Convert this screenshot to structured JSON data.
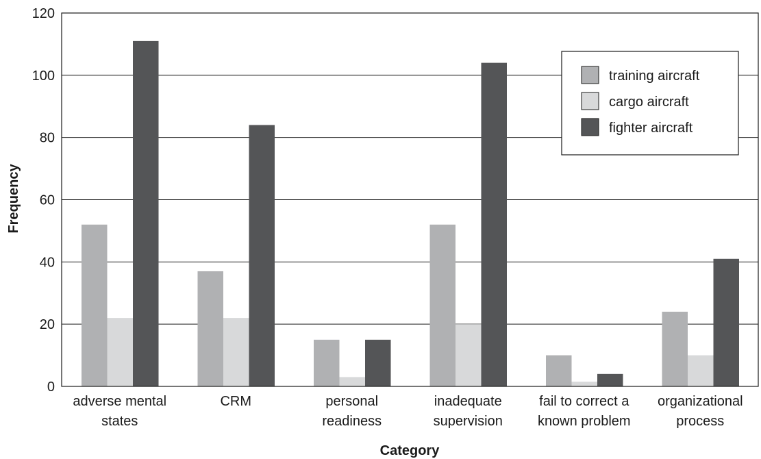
{
  "chart_data": {
    "type": "bar",
    "title": "",
    "xlabel": "Category",
    "ylabel": "Frequency",
    "ylim": [
      0,
      120
    ],
    "yticks": [
      0,
      20,
      40,
      60,
      80,
      100,
      120
    ],
    "grid": true,
    "legend_position": "top-right",
    "categories": [
      [
        "adverse mental",
        "states"
      ],
      [
        "CRM"
      ],
      [
        "personal",
        "readiness"
      ],
      [
        "inadequate",
        "supervision"
      ],
      [
        "fail to correct a",
        "known problem"
      ],
      [
        "organizational",
        "process"
      ]
    ],
    "series": [
      {
        "name": "training aircraft",
        "color": "#b0b1b3",
        "values": [
          52,
          37,
          15,
          52,
          10,
          24
        ]
      },
      {
        "name": "cargo aircraft",
        "color": "#d8d9da",
        "values": [
          22,
          22,
          3,
          20,
          1.5,
          10
        ]
      },
      {
        "name": "fighter aircraft",
        "color": "#545557",
        "values": [
          111,
          84,
          15,
          104,
          4,
          41
        ]
      }
    ]
  }
}
